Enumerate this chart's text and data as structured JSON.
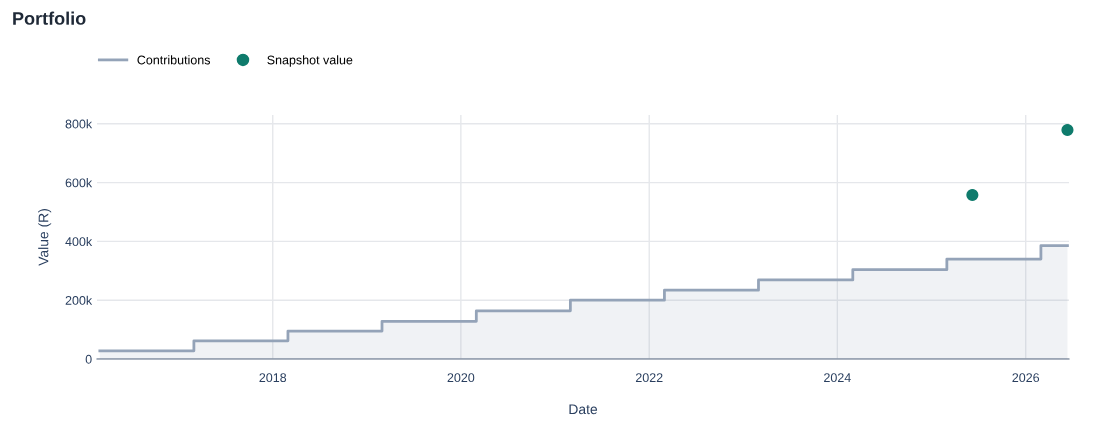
{
  "chart_data": {
    "type": "area",
    "title": "Portfolio",
    "xlabel": "Date",
    "ylabel": "Value (R)",
    "series": [
      {
        "name": "Contributions",
        "color": "#94a3b8",
        "x": [
          "2016-03-01",
          "2017-03-01",
          "2017-03-01",
          "2018-03-01",
          "2018-03-01",
          "2019-03-01",
          "2019-03-01",
          "2020-03-01",
          "2020-03-01",
          "2021-03-01",
          "2021-03-01",
          "2022-03-01",
          "2022-03-01",
          "2023-03-01",
          "2023-03-01",
          "2024-03-01",
          "2024-03-01",
          "2025-03-01",
          "2025-03-01",
          "2026-03-01",
          "2026-03-01",
          "2026-06-12"
        ],
        "values": [
          28000,
          28000,
          62000,
          62000,
          95000,
          95000,
          128000,
          128000,
          164000,
          164000,
          200000,
          200000,
          234000,
          234000,
          269000,
          269000,
          304000,
          304000,
          340000,
          340000,
          386000,
          386000
        ]
      },
      {
        "name": "Snapshot value",
        "type": "scatter",
        "marker": "circle",
        "color": "#0f7b6c",
        "x": [
          "2025-06-08",
          "2026-06-12"
        ],
        "values": [
          558000,
          779000
        ]
      }
    ],
    "xlim": [
      "2016-02-19",
      "2026-06-18"
    ],
    "xticks": [
      {
        "value": "2018-01-01",
        "label": "2018"
      },
      {
        "value": "2020-01-01",
        "label": "2020"
      },
      {
        "value": "2022-01-01",
        "label": "2022"
      },
      {
        "value": "2024-01-01",
        "label": "2024"
      },
      {
        "value": "2026-01-01",
        "label": "2026"
      }
    ],
    "ylim": [
      0,
      830000
    ],
    "yticks": [
      0,
      {
        "value": 200000,
        "label": "200k"
      },
      {
        "value": 400000,
        "label": "400k"
      },
      {
        "value": 600000,
        "label": "600k"
      },
      {
        "value": 800000,
        "label": "800k"
      }
    ],
    "grid": true,
    "legend": "top left"
  }
}
